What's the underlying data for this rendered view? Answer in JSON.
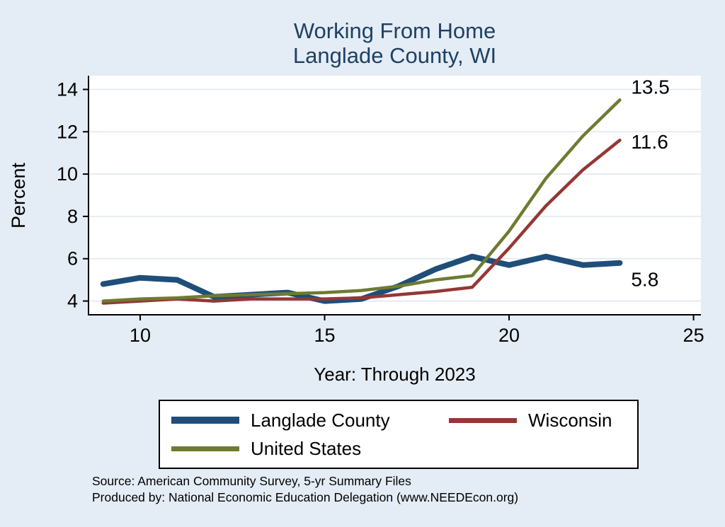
{
  "title": {
    "line1": "Working From Home",
    "line2": "Langlade County, WI"
  },
  "colors": {
    "background": "#e4ecf5",
    "title": "#1e4164",
    "grid": "#dde5ee",
    "axis": "#000000",
    "plot_background": "#ffffff"
  },
  "chart_data": {
    "type": "line",
    "title": "Working From Home - Langlade County, WI",
    "xlabel": "Year: Through 2023",
    "ylabel": "Percent",
    "x_ticks": [
      10,
      15,
      20,
      25
    ],
    "y_ticks": [
      4,
      6,
      8,
      10,
      12,
      14
    ],
    "xlim": [
      8.6,
      25.2
    ],
    "ylim": [
      3.35,
      14.65
    ],
    "grid": "horizontal",
    "legend_position": "bottom",
    "x": [
      9,
      10,
      11,
      12,
      13,
      14,
      15,
      16,
      17,
      18,
      19,
      20,
      21,
      22,
      23
    ],
    "series": [
      {
        "name": "Langlade County",
        "color": "#1f4e79",
        "width": 8,
        "end_label": "5.8",
        "values": [
          4.8,
          5.1,
          5.0,
          4.2,
          4.3,
          4.4,
          4.0,
          4.1,
          4.7,
          5.5,
          6.1,
          5.7,
          6.1,
          5.7,
          5.8
        ]
      },
      {
        "name": "Wisconsin",
        "color": "#953735",
        "width": 4.5,
        "end_label": "11.6",
        "values": [
          3.9,
          4.0,
          4.1,
          4.0,
          4.1,
          4.1,
          4.1,
          4.15,
          4.3,
          4.45,
          4.65,
          6.5,
          8.5,
          10.2,
          11.6
        ]
      },
      {
        "name": "United States",
        "color": "#6e7b31",
        "width": 4.5,
        "end_label": "13.5",
        "values": [
          4.0,
          4.1,
          4.15,
          4.25,
          4.3,
          4.35,
          4.4,
          4.5,
          4.7,
          5.0,
          5.2,
          7.3,
          9.8,
          11.8,
          13.5
        ]
      }
    ]
  },
  "footer": {
    "source_line": "Source: American Community Survey, 5-yr Summary Files",
    "produced_line": "Produced by: National Economic Education Delegation (www.NEEDEcon.org)"
  }
}
